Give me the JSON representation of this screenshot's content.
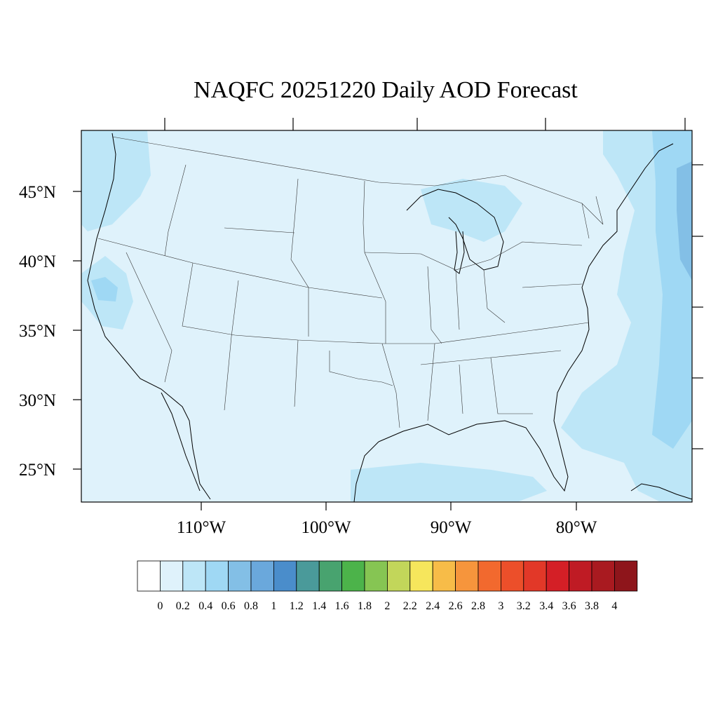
{
  "title": "NAQFC 20251220 Daily AOD Forecast",
  "map": {
    "latitude_labels": [
      "45°N",
      "40°N",
      "35°N",
      "30°N",
      "25°N"
    ],
    "longitude_labels": [
      "110°W",
      "100°W",
      "90°W",
      "80°W"
    ],
    "background_color": "#dff2fb",
    "border_color": "#000000"
  },
  "colorbar": {
    "labels": [
      "0",
      "0.2",
      "0.4",
      "0.6",
      "0.8",
      "1",
      "1.2",
      "1.4",
      "1.6",
      "1.8",
      "2",
      "2.2",
      "2.4",
      "2.6",
      "2.8",
      "3",
      "3.2",
      "3.4",
      "3.6",
      "3.8",
      "4"
    ],
    "colors": [
      "#ffffff",
      "#dff2fb",
      "#bde6f7",
      "#9fd8f4",
      "#83bfe6",
      "#6aa8dc",
      "#4a8dcb",
      "#4a9a9a",
      "#48a36f",
      "#4cb34a",
      "#86c553",
      "#c2d65a",
      "#f6e65c",
      "#f7bc48",
      "#f6953c",
      "#f2692e",
      "#ec4f2a",
      "#e23828",
      "#d41f26",
      "#bf1b24",
      "#a91a20",
      "#8e151b"
    ]
  }
}
